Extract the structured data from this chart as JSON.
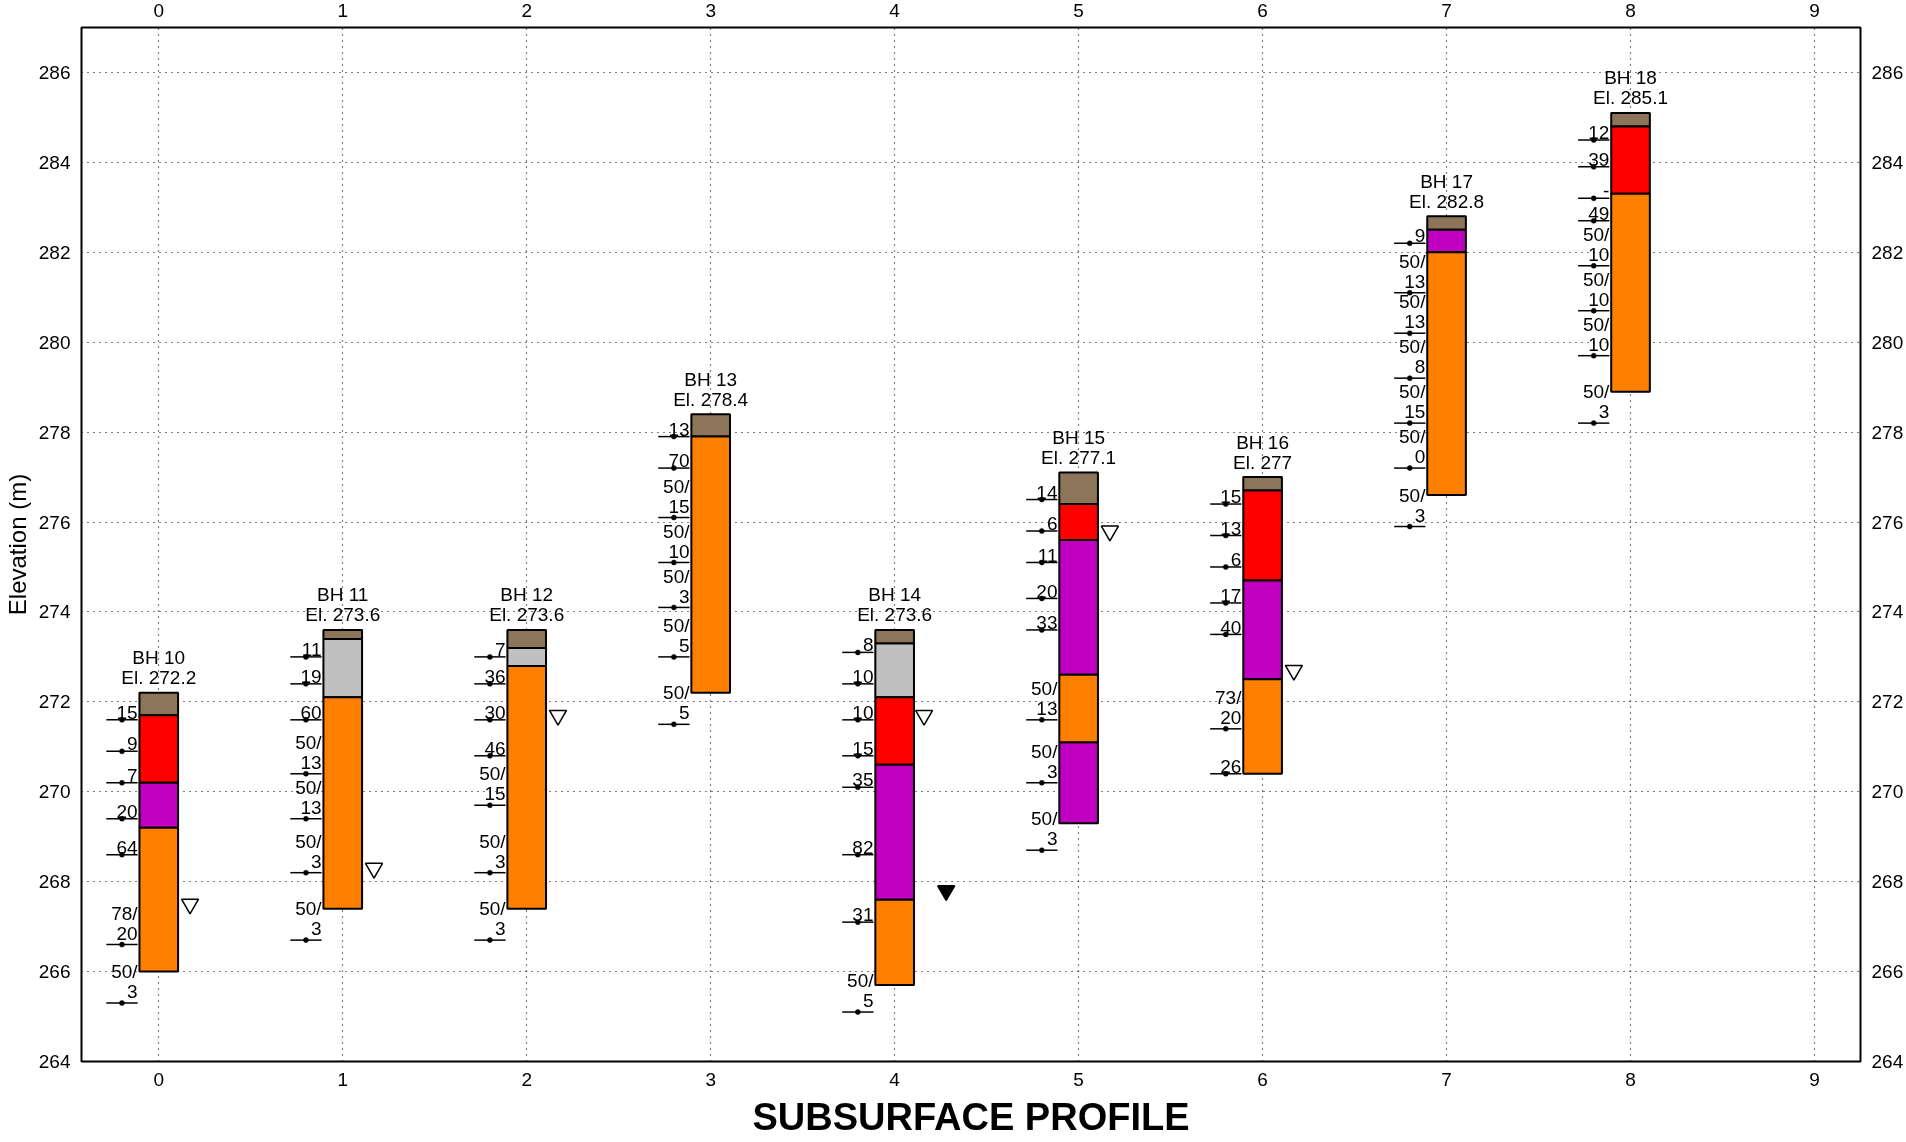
{
  "chart_data": {
    "type": "bar",
    "title": "SUBSURFACE PROFILE",
    "ylabel": "Elevation (m)",
    "xlim": [
      -0.42,
      9.25
    ],
    "xticks": [
      0,
      1,
      2,
      3,
      4,
      5,
      6,
      7,
      8,
      9
    ],
    "x2lim": [
      -0.42,
      9.25
    ],
    "x2ticks": [
      0,
      1,
      2,
      3,
      4,
      5,
      6,
      7,
      8,
      9
    ],
    "ylim": [
      264,
      287
    ],
    "yticks": [
      264,
      266,
      268,
      270,
      272,
      274,
      276,
      278,
      280,
      282,
      284,
      286
    ],
    "y2lim": [
      264,
      287
    ],
    "y2ticks": [
      264,
      266,
      268,
      270,
      272,
      274,
      276,
      278,
      280,
      282,
      284,
      286
    ],
    "grid": true,
    "series": [
      {
        "type": "bar",
        "color": "#8c7558",
        "x": [
          0,
          1,
          2,
          3,
          4,
          5,
          6,
          7,
          8
        ],
        "base": [
          271.7,
          273.4,
          273.2,
          277.9,
          273.3,
          276.4,
          276.7,
          282.5,
          284.8
        ],
        "values": [
          0.5,
          0.2,
          0.4,
          0.5,
          0.3,
          0.7,
          0.3,
          0.3,
          0.3
        ]
      },
      {
        "type": "bar",
        "color": "#c0c0c0",
        "x": [
          1,
          2,
          4
        ],
        "base": [
          272.1,
          272.8,
          272.1
        ],
        "values": [
          1.3,
          0.4,
          1.2
        ]
      },
      {
        "type": "bar",
        "color": "#ff0000",
        "x": [
          0,
          4,
          5,
          6,
          8
        ],
        "base": [
          270.2,
          270.6,
          275.6,
          274.7,
          283.3
        ],
        "values": [
          1.5,
          1.5,
          0.8,
          2.0,
          1.5
        ]
      },
      {
        "type": "bar",
        "color": "#c000c0",
        "x": [
          0,
          4,
          5,
          6,
          7
        ],
        "base": [
          269.2,
          267.6,
          272.6,
          272.5,
          282.0
        ],
        "values": [
          1.0,
          3.0,
          3.0,
          2.2,
          0.5
        ]
      },
      {
        "type": "bar",
        "color": "#c000c0",
        "x": [
          5
        ],
        "base": [
          269.3
        ],
        "values": [
          1.8
        ]
      },
      {
        "type": "bar",
        "color": "#ff8000",
        "x": [
          0,
          1,
          2,
          3,
          4,
          5,
          6,
          7,
          8
        ],
        "base": [
          266.0,
          267.4,
          267.4,
          272.2,
          265.7,
          271.1,
          270.4,
          276.6,
          278.9
        ],
        "values": [
          3.2,
          4.7,
          5.4,
          5.7,
          1.9,
          1.5,
          2.1,
          5.4,
          4.4
        ]
      },
      {
        "type": "scatter",
        "marker": "triangle",
        "color": "#ffffff",
        "x": [
          0.17,
          1.17,
          2.17,
          4.16,
          5.17,
          6.17
        ],
        "values": [
          267.5,
          268.3,
          271.7,
          271.7,
          275.8,
          272.7
        ]
      },
      {
        "type": "scatter",
        "marker": "triangle",
        "color": "#000000",
        "x": [
          4.28
        ],
        "values": [
          267.8
        ]
      },
      {
        "type": "scatter",
        "marker": "circle",
        "color": "#000000",
        "xerrors": [
          0.085,
          0.085,
          0.085,
          0.085,
          0.085,
          0.085,
          0.085
        ],
        "x": [
          -0.2,
          -0.2,
          -0.2,
          -0.2,
          -0.2,
          -0.2,
          -0.2
        ],
        "values": [
          271.6,
          270.9,
          270.2,
          269.4,
          268.6,
          266.6,
          265.3
        ]
      },
      {
        "type": "scatter",
        "marker": "circle",
        "color": "#000000",
        "xerrors": [
          0.085,
          0.085,
          0.085,
          0.085,
          0.085,
          0.085,
          0.085
        ],
        "x": [
          0.8,
          0.8,
          0.8,
          0.8,
          0.8,
          0.8,
          0.8
        ],
        "values": [
          273.0,
          272.4,
          271.6,
          270.4,
          269.4,
          268.2,
          266.7
        ]
      },
      {
        "type": "scatter",
        "marker": "circle",
        "color": "#000000",
        "xerrors": [
          0.085,
          0.085,
          0.085,
          0.085,
          0.085,
          0.085,
          0.085
        ],
        "x": [
          1.8,
          1.8,
          1.8,
          1.8,
          1.8,
          1.8,
          1.8
        ],
        "values": [
          273.0,
          272.4,
          271.6,
          270.8,
          269.7,
          268.2,
          266.7
        ]
      },
      {
        "type": "scatter",
        "marker": "circle",
        "color": "#000000",
        "xerrors": [
          0.085,
          0.085,
          0.085,
          0.085,
          0.085,
          0.085,
          0.085
        ],
        "x": [
          2.8,
          2.8,
          2.8,
          2.8,
          2.8,
          2.8,
          2.8
        ],
        "values": [
          277.9,
          277.2,
          276.1,
          275.1,
          274.1,
          273.0,
          271.5
        ]
      },
      {
        "type": "scatter",
        "marker": "circle",
        "color": "#000000",
        "xerrors": [
          0.085,
          0.085,
          0.085,
          0.085,
          0.085,
          0.085,
          0.085,
          0.085
        ],
        "x": [
          3.8,
          3.8,
          3.8,
          3.8,
          3.8,
          3.8,
          3.8,
          3.8
        ],
        "values": [
          273.1,
          272.4,
          271.6,
          270.8,
          270.1,
          268.6,
          267.1,
          265.1
        ]
      },
      {
        "type": "scatter",
        "marker": "circle",
        "color": "#000000",
        "xerrors": [
          0.085,
          0.085,
          0.085,
          0.085,
          0.085,
          0.085,
          0.085,
          0.085
        ],
        "x": [
          4.8,
          4.8,
          4.8,
          4.8,
          4.8,
          4.8,
          4.8,
          4.8
        ],
        "values": [
          276.5,
          275.8,
          275.1,
          274.3,
          273.6,
          271.6,
          270.2,
          268.7
        ]
      },
      {
        "type": "scatter",
        "marker": "circle",
        "color": "#000000",
        "xerrors": [
          0.085,
          0.085,
          0.085,
          0.085,
          0.085,
          0.085,
          0.085
        ],
        "x": [
          5.8,
          5.8,
          5.8,
          5.8,
          5.8,
          5.8,
          5.8
        ],
        "values": [
          276.4,
          275.7,
          275.0,
          274.2,
          273.5,
          271.4,
          270.4
        ]
      },
      {
        "type": "scatter",
        "marker": "circle",
        "color": "#000000",
        "xerrors": [
          0.085,
          0.085,
          0.085,
          0.085,
          0.085,
          0.085,
          0.085
        ],
        "x": [
          6.8,
          6.8,
          6.8,
          6.8,
          6.8,
          6.8,
          6.8
        ],
        "values": [
          282.2,
          281.1,
          280.2,
          279.2,
          278.2,
          277.2,
          275.9
        ]
      },
      {
        "type": "scatter",
        "marker": "circle",
        "color": "#000000",
        "xerrors": [
          0.085,
          0.085,
          0.085,
          0.085,
          0.085,
          0.085,
          0.085,
          0.085
        ],
        "x": [
          7.8,
          7.8,
          7.8,
          7.8,
          7.8,
          7.8,
          7.8,
          7.8
        ],
        "values": [
          284.5,
          283.9,
          283.2,
          282.7,
          281.7,
          280.7,
          279.7,
          278.2
        ]
      }
    ],
    "annotations": [
      {
        "text": "BH 10\nEl. 272.2",
        "x": 0,
        "y": 272.2
      },
      {
        "text": "BH 11\nEl. 273.6",
        "x": 1,
        "y": 273.6
      },
      {
        "text": "BH 12\nEl. 273.6",
        "x": 2,
        "y": 273.6
      },
      {
        "text": "BH 13\nEl. 278.4",
        "x": 3,
        "y": 278.4
      },
      {
        "text": "BH 14\nEl. 273.6",
        "x": 4,
        "y": 273.6
      },
      {
        "text": "BH 15\nEl. 277.1",
        "x": 5,
        "y": 277.1
      },
      {
        "text": "BH 16\nEl. 277",
        "x": 6,
        "y": 277.0
      },
      {
        "text": "BH 17\nEl. 282.8",
        "x": 7,
        "y": 282.8
      },
      {
        "text": "BH 18\nEl. 285.1",
        "x": 8,
        "y": 285.1
      },
      {
        "text": "15",
        "x": -0.2,
        "y": 271.6
      },
      {
        "text": "9",
        "x": -0.2,
        "y": 270.9
      },
      {
        "text": "7",
        "x": -0.2,
        "y": 270.2
      },
      {
        "text": "20",
        "x": -0.2,
        "y": 269.4
      },
      {
        "text": "64",
        "x": -0.2,
        "y": 268.6
      },
      {
        "text": "78/\n20",
        "x": -0.2,
        "y": 266.6
      },
      {
        "text": "50/\n3",
        "x": -0.2,
        "y": 265.3
      },
      {
        "text": "11",
        "x": 0.8,
        "y": 273.0
      },
      {
        "text": "19",
        "x": 0.8,
        "y": 272.4
      },
      {
        "text": "60",
        "x": 0.8,
        "y": 271.6
      },
      {
        "text": "50/\n13",
        "x": 0.8,
        "y": 270.4
      },
      {
        "text": "50/\n13",
        "x": 0.8,
        "y": 269.4
      },
      {
        "text": "50/\n3",
        "x": 0.8,
        "y": 268.2
      },
      {
        "text": "50/\n3",
        "x": 0.8,
        "y": 266.7
      },
      {
        "text": "7",
        "x": 1.8,
        "y": 273.0
      },
      {
        "text": "36",
        "x": 1.8,
        "y": 272.4
      },
      {
        "text": "30",
        "x": 1.8,
        "y": 271.6
      },
      {
        "text": "46",
        "x": 1.8,
        "y": 270.8
      },
      {
        "text": "50/\n15",
        "x": 1.8,
        "y": 269.7
      },
      {
        "text": "50/\n3",
        "x": 1.8,
        "y": 268.2
      },
      {
        "text": "50/\n3",
        "x": 1.8,
        "y": 266.7
      },
      {
        "text": "13",
        "x": 2.8,
        "y": 277.9
      },
      {
        "text": "70",
        "x": 2.8,
        "y": 277.2
      },
      {
        "text": "50/\n15",
        "x": 2.8,
        "y": 276.1
      },
      {
        "text": "50/\n10",
        "x": 2.8,
        "y": 275.1
      },
      {
        "text": "50/\n3",
        "x": 2.8,
        "y": 274.1
      },
      {
        "text": "50/\n5",
        "x": 2.8,
        "y": 273.0
      },
      {
        "text": "50/\n5",
        "x": 2.8,
        "y": 271.5
      },
      {
        "text": "8",
        "x": 3.8,
        "y": 273.1
      },
      {
        "text": "10",
        "x": 3.8,
        "y": 272.4
      },
      {
        "text": "10",
        "x": 3.8,
        "y": 271.6
      },
      {
        "text": "15",
        "x": 3.8,
        "y": 270.8
      },
      {
        "text": "35",
        "x": 3.8,
        "y": 270.1
      },
      {
        "text": "82",
        "x": 3.8,
        "y": 268.6
      },
      {
        "text": "31",
        "x": 3.8,
        "y": 267.1
      },
      {
        "text": "50/\n5",
        "x": 3.8,
        "y": 265.1
      },
      {
        "text": "14",
        "x": 4.8,
        "y": 276.5
      },
      {
        "text": "6",
        "x": 4.8,
        "y": 275.8
      },
      {
        "text": "11",
        "x": 4.8,
        "y": 275.1
      },
      {
        "text": "20",
        "x": 4.8,
        "y": 274.3
      },
      {
        "text": "33",
        "x": 4.8,
        "y": 273.6
      },
      {
        "text": "50/\n13",
        "x": 4.8,
        "y": 271.6
      },
      {
        "text": "50/\n3",
        "x": 4.8,
        "y": 270.2
      },
      {
        "text": "50/\n3",
        "x": 4.8,
        "y": 268.7
      },
      {
        "text": "15",
        "x": 5.8,
        "y": 276.4
      },
      {
        "text": "13",
        "x": 5.8,
        "y": 275.7
      },
      {
        "text": "6",
        "x": 5.8,
        "y": 275.0
      },
      {
        "text": "17",
        "x": 5.8,
        "y": 274.2
      },
      {
        "text": "40",
        "x": 5.8,
        "y": 273.5
      },
      {
        "text": "73/\n20",
        "x": 5.8,
        "y": 271.4
      },
      {
        "text": "26",
        "x": 5.8,
        "y": 270.4
      },
      {
        "text": "9",
        "x": 6.8,
        "y": 282.2
      },
      {
        "text": "50/\n13",
        "x": 6.8,
        "y": 281.1
      },
      {
        "text": "50/\n13",
        "x": 6.8,
        "y": 280.2
      },
      {
        "text": "50/\n8",
        "x": 6.8,
        "y": 279.2
      },
      {
        "text": "50/\n15",
        "x": 6.8,
        "y": 278.2
      },
      {
        "text": "50/\n0",
        "x": 6.8,
        "y": 277.2
      },
      {
        "text": "50/\n3",
        "x": 6.8,
        "y": 275.9
      },
      {
        "text": "12",
        "x": 7.8,
        "y": 284.5
      },
      {
        "text": "39",
        "x": 7.8,
        "y": 283.9
      },
      {
        "text": "-",
        "x": 7.8,
        "y": 283.2
      },
      {
        "text": "49",
        "x": 7.8,
        "y": 282.7
      },
      {
        "text": "50/\n10",
        "x": 7.8,
        "y": 281.7
      },
      {
        "text": "50/\n10",
        "x": 7.8,
        "y": 280.7
      },
      {
        "text": "50/\n10",
        "x": 7.8,
        "y": 279.7
      },
      {
        "text": "50/\n3",
        "x": 7.8,
        "y": 278.2
      }
    ]
  }
}
